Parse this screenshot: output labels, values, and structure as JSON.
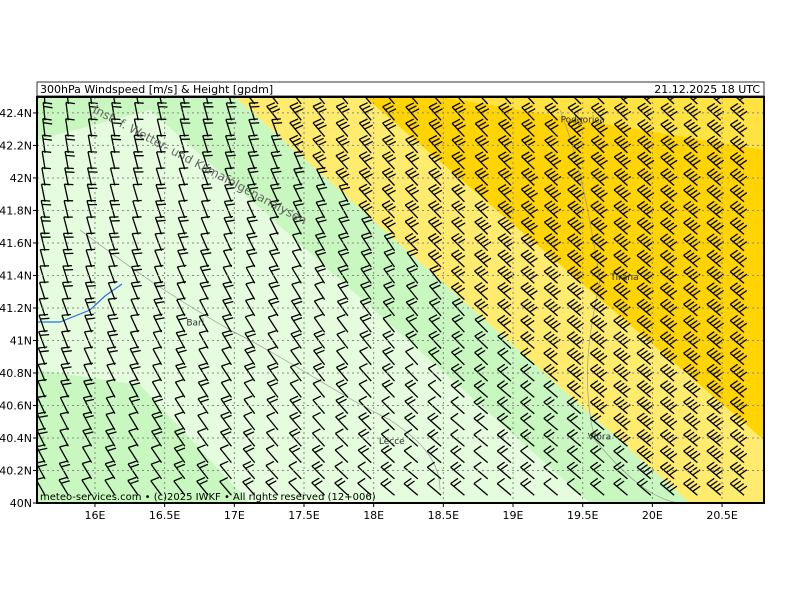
{
  "header": {
    "title": "300hPa Windspeed [m/s] & Height [gpdm]",
    "datetime": "21.12.2025 18 UTC"
  },
  "watermark": "Inst. f. Wetter- und Klimafolgenanalysen",
  "footer": "meteo-services.com • (c)2025 IWKF • All rights reserved (12+006)",
  "map": {
    "lon_range": [
      15.584,
      20.801
    ],
    "lat_range": [
      40,
      42.498
    ],
    "lat_ticks": [
      {
        "value": 42.4,
        "label": "42.4N"
      },
      {
        "value": 42.2,
        "label": "42.2N"
      },
      {
        "value": 42,
        "label": "42N"
      },
      {
        "value": 41.8,
        "label": "41.8N"
      },
      {
        "value": 41.6,
        "label": "41.6N"
      },
      {
        "value": 41.4,
        "label": "41.4N"
      },
      {
        "value": 41.2,
        "label": "41.2N"
      },
      {
        "value": 41,
        "label": "41N"
      },
      {
        "value": 40.8,
        "label": "40.8N"
      },
      {
        "value": 40.6,
        "label": "40.6N"
      },
      {
        "value": 40.4,
        "label": "40.4N"
      },
      {
        "value": 40.2,
        "label": "40.2N"
      },
      {
        "value": 40,
        "label": "40N"
      }
    ],
    "lon_ticks": [
      {
        "value": 16,
        "label": "16E"
      },
      {
        "value": 16.5,
        "label": "16.5E"
      },
      {
        "value": 17,
        "label": "17E"
      },
      {
        "value": 17.5,
        "label": "17.5E"
      },
      {
        "value": 18,
        "label": "18E"
      },
      {
        "value": 18.5,
        "label": "18.5E"
      },
      {
        "value": 19,
        "label": "19E"
      },
      {
        "value": 19.5,
        "label": "19.5E"
      },
      {
        "value": 20,
        "label": "20E"
      },
      {
        "value": 20.5,
        "label": "20.5E"
      }
    ],
    "cities": [
      {
        "name": "Podgorica",
        "lon": 19.5,
        "lat": 42.36
      },
      {
        "name": "Tirana",
        "lon": 19.8,
        "lat": 41.39
      },
      {
        "name": "Bari",
        "lon": 16.72,
        "lat": 41.11
      },
      {
        "name": "Lecce",
        "lon": 18.13,
        "lat": 40.38
      },
      {
        "name": "Vlora",
        "lon": 19.62,
        "lat": 40.41
      }
    ]
  }
}
